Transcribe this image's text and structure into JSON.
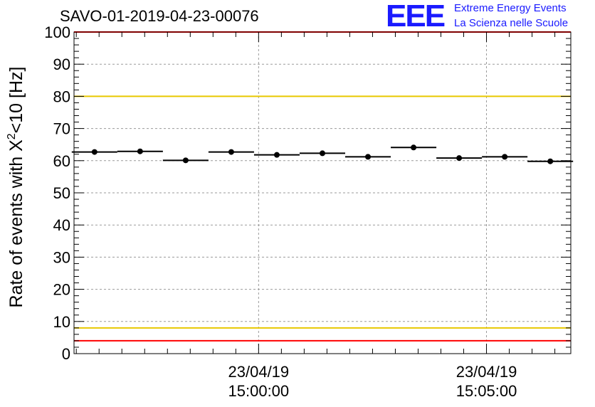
{
  "title": "SAVO-01-2019-04-23-00076",
  "logo": {
    "mark": "EEE",
    "line1": "Extreme Energy Events",
    "line2": "La Scienza nelle Scuole"
  },
  "colors": {
    "red_line": "#ff0000",
    "yellow_line": "#e8c800",
    "points": "#000000",
    "logo": "#1a1aff",
    "grid": "#9a9a9a"
  },
  "chart_data": {
    "type": "scatter",
    "title": "SAVO-01-2019-04-23-00076",
    "ylabel_main": "Rate of events with X",
    "ylabel_sup": "2",
    "ylabel_tail": "<10 [Hz]",
    "ylim": [
      0,
      100
    ],
    "yticks": [
      0,
      10,
      20,
      30,
      40,
      50,
      60,
      70,
      80,
      90,
      100
    ],
    "xlim_minutes": [
      -4.05,
      6.85
    ],
    "xticks": [
      {
        "minute": 0,
        "date": "23/04/19",
        "time": "15:00:00"
      },
      {
        "minute": 5,
        "date": "23/04/19",
        "time": "15:05:00"
      }
    ],
    "series": [
      {
        "name": "rate",
        "x_minutes": [
          -3.6,
          -2.6,
          -1.6,
          -0.6,
          0.4,
          1.4,
          2.4,
          3.4,
          4.4,
          5.4,
          6.4
        ],
        "x_halfwidth": 0.5,
        "values": [
          62.7,
          62.9,
          60.1,
          62.7,
          61.8,
          62.3,
          61.2,
          64.1,
          60.8,
          61.2,
          59.8
        ]
      }
    ],
    "reference_lines": [
      {
        "y": 100,
        "color": "red"
      },
      {
        "y": 80,
        "color": "yellow"
      },
      {
        "y": 8,
        "color": "yellow"
      },
      {
        "y": 4,
        "color": "red"
      }
    ]
  }
}
